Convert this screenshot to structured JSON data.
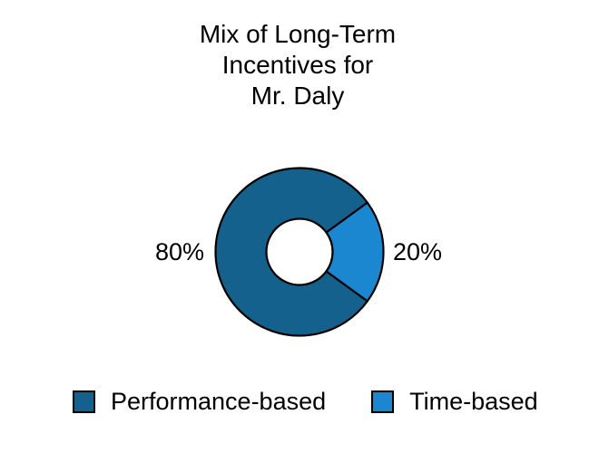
{
  "title": {
    "lines": [
      "Mix of Long-Term",
      "Incentives for",
      "Mr. Daly"
    ]
  },
  "chart_data": {
    "type": "pie",
    "subtype": "donut",
    "title": "Mix of Long-Term Incentives for Mr. Daly",
    "categories": [
      "Performance-based",
      "Time-based"
    ],
    "values": [
      80,
      20
    ],
    "value_labels": [
      "80%",
      "20%"
    ],
    "colors": [
      "#15618E",
      "#1B87D0"
    ],
    "outline_color": "#000000",
    "legend_position": "bottom",
    "label_position": "outside",
    "small_slice_center_deg": 0
  },
  "labels": {
    "left_pct": "80%",
    "right_pct": "20%"
  },
  "legend": {
    "items": [
      {
        "label": "Performance-based",
        "color": "#15618E"
      },
      {
        "label": "Time-based",
        "color": "#1B87D0"
      }
    ]
  }
}
